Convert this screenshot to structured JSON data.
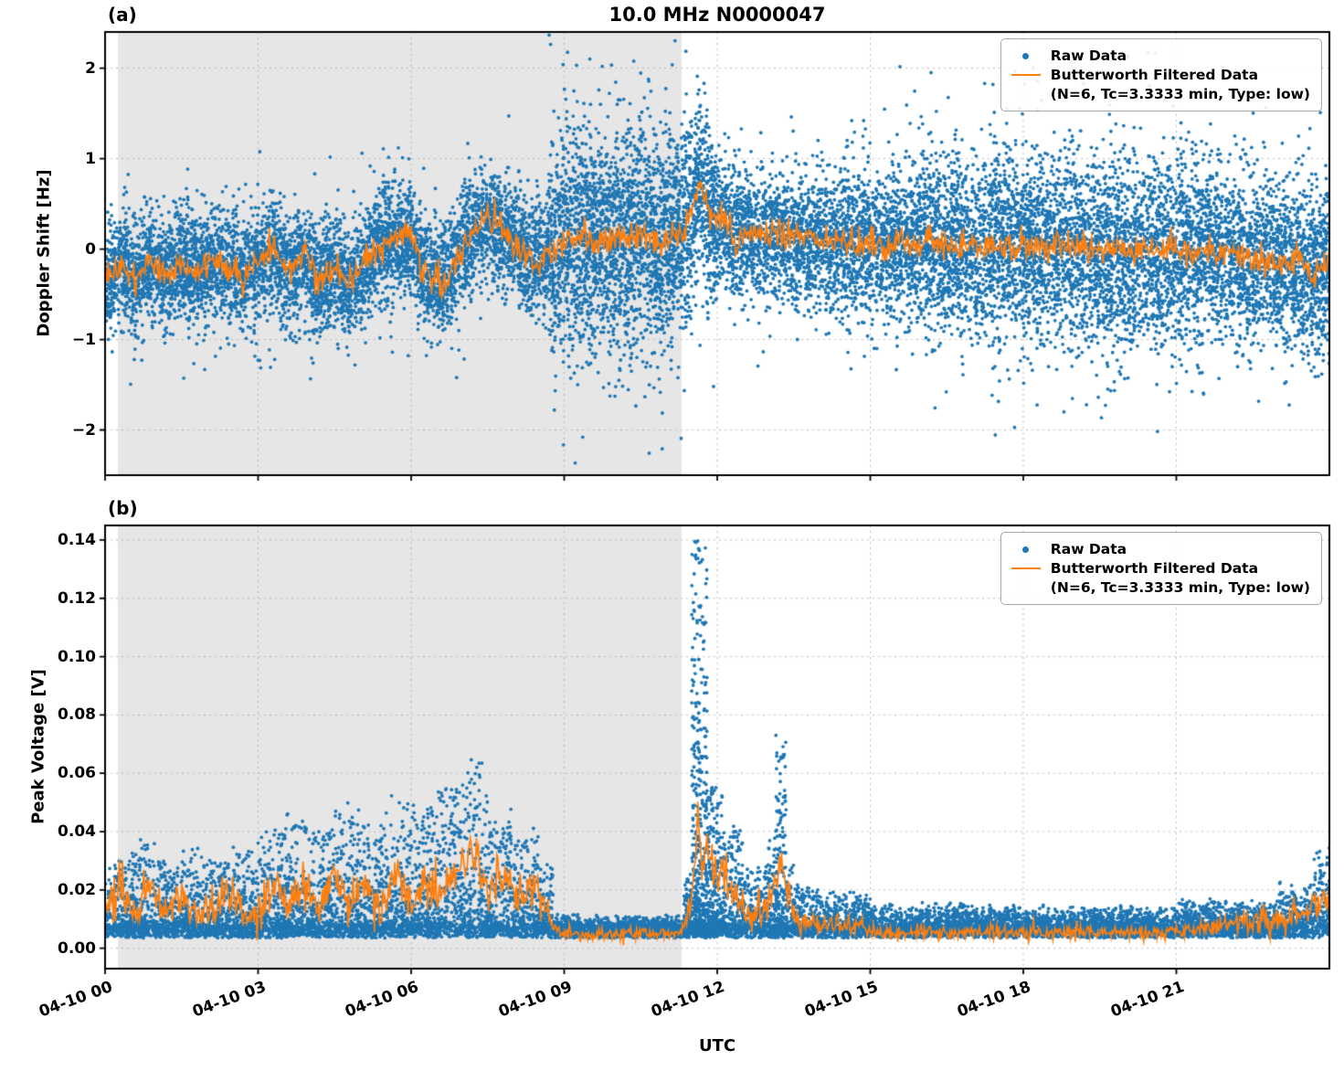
{
  "figure": {
    "title": "10.0 MHz N0000047"
  },
  "colors": {
    "raw": "#1f77b4",
    "filtered": "#ff7f0e",
    "shade": "#e6e6e6",
    "grid": "#b8b8b8",
    "spine": "#000000"
  },
  "legend": {
    "raw_label": "Raw Data",
    "filtered_label_line1": "Butterworth Filtered Data",
    "filtered_label_line2": "(N=6, Tc=3.3333 min, Type: low)"
  },
  "x_axis": {
    "label": "UTC",
    "lim": [
      0,
      24
    ],
    "ticks": [
      0,
      3,
      6,
      9,
      12,
      15,
      18,
      21
    ],
    "tick_labels": [
      "04-10 00",
      "04-10 03",
      "04-10 06",
      "04-10 09",
      "04-10 12",
      "04-10 15",
      "04-10 18",
      "04-10 21"
    ],
    "shaded_region": [
      0.25,
      11.3
    ]
  },
  "chart_data": [
    {
      "panel": "a",
      "panel_label": "(a)",
      "type": "scatter",
      "ylabel": "Doppler Shift [Hz]",
      "ylim": [
        -2.5,
        2.4
      ],
      "yticks": [
        2,
        1,
        0,
        -1,
        -2
      ],
      "ytick_labels": [
        "2",
        "1",
        "0",
        "−1",
        "−2"
      ],
      "series": {
        "raw": {
          "name": "Raw Data",
          "model": "gauss",
          "density": 700,
          "segments": [
            [
              0,
              8.7,
              0.62,
              1
            ],
            [
              8.7,
              9.3,
              1.25,
              1.2
            ],
            [
              9.3,
              11,
              1.3,
              1.3
            ],
            [
              11,
              11.5,
              1.15,
              1.3
            ],
            [
              11.5,
              12,
              0.9,
              1.2
            ],
            [
              12,
              12.6,
              0.8,
              1
            ],
            [
              12.6,
              14,
              0.72,
              1
            ],
            [
              14,
              15.5,
              0.82,
              1
            ],
            [
              15.5,
              17,
              0.95,
              1.1
            ],
            [
              17,
              19,
              1.05,
              1.1
            ],
            [
              19,
              21.5,
              1.05,
              1.1
            ],
            [
              21.5,
              24,
              0.95,
              1.1
            ]
          ]
        },
        "filtered": {
          "name": "Butterworth Filtered Data",
          "jitter": 0.085,
          "keypoints": [
            [
              0,
              -0.38
            ],
            [
              0.3,
              -0.2
            ],
            [
              0.6,
              -0.35
            ],
            [
              0.9,
              -0.12
            ],
            [
              1.2,
              -0.3
            ],
            [
              1.5,
              -0.18
            ],
            [
              1.8,
              -0.28
            ],
            [
              2.1,
              -0.1
            ],
            [
              2.4,
              -0.22
            ],
            [
              2.7,
              -0.3
            ],
            [
              3,
              -0.15
            ],
            [
              3.3,
              0
            ],
            [
              3.6,
              -0.25
            ],
            [
              3.9,
              -0.1
            ],
            [
              4.2,
              -0.35
            ],
            [
              4.5,
              -0.2
            ],
            [
              4.8,
              -0.4
            ],
            [
              5.1,
              -0.15
            ],
            [
              5.4,
              0.05
            ],
            [
              5.7,
              0.15
            ],
            [
              6,
              0.1
            ],
            [
              6.3,
              -0.3
            ],
            [
              6.6,
              -0.35
            ],
            [
              6.9,
              -0.15
            ],
            [
              7.2,
              0.2
            ],
            [
              7.5,
              0.35
            ],
            [
              7.8,
              0.2
            ],
            [
              8.1,
              0.05
            ],
            [
              8.4,
              -0.15
            ],
            [
              8.7,
              -0.05
            ],
            [
              9,
              0.05
            ],
            [
              9.3,
              0.1
            ],
            [
              9.6,
              0.05
            ],
            [
              9.9,
              0.12
            ],
            [
              10.2,
              0.08
            ],
            [
              10.5,
              0.15
            ],
            [
              10.8,
              0.1
            ],
            [
              11.1,
              0.12
            ],
            [
              11.35,
              0.2
            ],
            [
              11.55,
              0.55
            ],
            [
              11.65,
              0.78
            ],
            [
              11.8,
              0.5
            ],
            [
              11.95,
              0.3
            ],
            [
              12.1,
              0.35
            ],
            [
              12.3,
              0.15
            ],
            [
              12.6,
              0.2
            ],
            [
              12.9,
              0.1
            ],
            [
              13.2,
              0.18
            ],
            [
              13.5,
              0.08
            ],
            [
              13.8,
              0.12
            ],
            [
              14.1,
              0.02
            ],
            [
              14.4,
              0.1
            ],
            [
              14.7,
              0
            ],
            [
              15,
              0.08
            ],
            [
              15.3,
              0
            ],
            [
              15.6,
              0.1
            ],
            [
              15.9,
              0.03
            ],
            [
              16.2,
              0.1
            ],
            [
              16.5,
              0
            ],
            [
              16.8,
              0.08
            ],
            [
              17.1,
              -0.02
            ],
            [
              17.4,
              0.06
            ],
            [
              17.7,
              0
            ],
            [
              18,
              0.08
            ],
            [
              18.3,
              -0.02
            ],
            [
              18.6,
              0.05
            ],
            [
              18.9,
              -0.03
            ],
            [
              19.2,
              0.05
            ],
            [
              19.5,
              -0.02
            ],
            [
              19.8,
              0.05
            ],
            [
              20.1,
              -0.05
            ],
            [
              20.4,
              0.03
            ],
            [
              20.7,
              -0.05
            ],
            [
              21,
              0.02
            ],
            [
              21.3,
              -0.08
            ],
            [
              21.6,
              0
            ],
            [
              21.9,
              -0.1
            ],
            [
              22.2,
              -0.05
            ],
            [
              22.5,
              -0.15
            ],
            [
              22.8,
              -0.08
            ],
            [
              23.1,
              -0.2
            ],
            [
              23.4,
              -0.12
            ],
            [
              23.7,
              -0.25
            ],
            [
              24,
              -0.2
            ]
          ]
        }
      }
    },
    {
      "panel": "b",
      "panel_label": "(b)",
      "type": "scatter",
      "ylabel": "Peak Voltage [V]",
      "ylim": [
        -0.007,
        0.145
      ],
      "yticks": [
        0.14,
        0.12,
        0.1,
        0.08,
        0.06,
        0.04,
        0.02,
        0
      ],
      "ytick_labels": [
        "0.14",
        "0.12",
        "0.10",
        "0.08",
        "0.06",
        "0.04",
        "0.02",
        "0.00"
      ],
      "series": {
        "raw": {
          "name": "Raw Data",
          "model": "tail",
          "density": 520,
          "base": [
            0.0035,
            0.008
          ],
          "segments": [
            [
              0,
              0.5,
              0.025,
              1
            ],
            [
              0.5,
              1,
              0.03,
              1
            ],
            [
              1,
              1.5,
              0.024,
              1
            ],
            [
              1.5,
              2,
              0.028,
              1
            ],
            [
              2,
              2.5,
              0.024,
              1
            ],
            [
              2.5,
              3,
              0.028,
              1
            ],
            [
              3,
              3.5,
              0.034,
              1
            ],
            [
              3.5,
              4,
              0.04,
              1
            ],
            [
              4,
              4.5,
              0.034,
              1
            ],
            [
              4.5,
              5,
              0.042,
              1
            ],
            [
              5,
              5.5,
              0.036,
              1
            ],
            [
              5.5,
              6,
              0.046,
              1
            ],
            [
              6,
              6.5,
              0.042,
              1
            ],
            [
              6.5,
              7,
              0.052,
              1
            ],
            [
              7,
              7.5,
              0.058,
              1
            ],
            [
              7.5,
              8,
              0.04,
              1
            ],
            [
              8,
              8.5,
              0.034,
              1
            ],
            [
              8.5,
              8.8,
              0.022,
              1
            ],
            [
              8.8,
              11.35,
              0.004,
              1
            ],
            [
              11.35,
              11.5,
              0.02,
              2
            ],
            [
              11.5,
              11.8,
              0.135,
              3
            ],
            [
              11.8,
              12.1,
              0.05,
              2
            ],
            [
              12.1,
              12.5,
              0.035,
              1.3
            ],
            [
              12.5,
              13,
              0.022,
              1
            ],
            [
              13,
              13.15,
              0.032,
              1.3
            ],
            [
              13.15,
              13.35,
              0.066,
              2
            ],
            [
              13.35,
              13.6,
              0.022,
              1
            ],
            [
              13.6,
              14,
              0.014,
              1
            ],
            [
              14,
              15,
              0.012,
              1
            ],
            [
              15,
              17,
              0.008,
              1
            ],
            [
              17,
              21,
              0.007,
              1
            ],
            [
              21,
              23,
              0.009,
              1
            ],
            [
              23,
              23.7,
              0.015,
              1
            ],
            [
              23.7,
              24,
              0.028,
              1
            ]
          ]
        },
        "filtered": {
          "name": "Butterworth Filtered Data",
          "jitter": "scaled",
          "keypoints": [
            [
              0,
              0.012
            ],
            [
              0.3,
              0.02
            ],
            [
              0.6,
              0.01
            ],
            [
              0.9,
              0.022
            ],
            [
              1.2,
              0.012
            ],
            [
              1.5,
              0.02
            ],
            [
              1.8,
              0.01
            ],
            [
              2.1,
              0.014
            ],
            [
              2.4,
              0.018
            ],
            [
              2.7,
              0.011
            ],
            [
              3,
              0.013
            ],
            [
              3.3,
              0.024
            ],
            [
              3.6,
              0.012
            ],
            [
              3.9,
              0.022
            ],
            [
              4.2,
              0.013
            ],
            [
              4.5,
              0.028
            ],
            [
              4.8,
              0.014
            ],
            [
              5.1,
              0.024
            ],
            [
              5.4,
              0.012
            ],
            [
              5.7,
              0.028
            ],
            [
              6,
              0.013
            ],
            [
              6.3,
              0.024
            ],
            [
              6.6,
              0.016
            ],
            [
              6.9,
              0.028
            ],
            [
              7.2,
              0.034
            ],
            [
              7.5,
              0.02
            ],
            [
              7.8,
              0.027
            ],
            [
              8.1,
              0.016
            ],
            [
              8.4,
              0.022
            ],
            [
              8.7,
              0.01
            ],
            [
              9,
              0.005
            ],
            [
              9.5,
              0.0045
            ],
            [
              10,
              0.005
            ],
            [
              10.5,
              0.0055
            ],
            [
              11,
              0.005
            ],
            [
              11.3,
              0.006
            ],
            [
              11.45,
              0.012
            ],
            [
              11.55,
              0.03
            ],
            [
              11.62,
              0.047
            ],
            [
              11.7,
              0.028
            ],
            [
              11.8,
              0.038
            ],
            [
              11.9,
              0.03
            ],
            [
              12,
              0.02
            ],
            [
              12.15,
              0.026
            ],
            [
              12.3,
              0.018
            ],
            [
              12.5,
              0.014
            ],
            [
              12.7,
              0.011
            ],
            [
              12.9,
              0.013
            ],
            [
              13.1,
              0.02
            ],
            [
              13.25,
              0.031
            ],
            [
              13.4,
              0.016
            ],
            [
              13.6,
              0.01
            ],
            [
              13.8,
              0.008
            ],
            [
              14,
              0.009
            ],
            [
              14.3,
              0.007
            ],
            [
              14.6,
              0.008
            ],
            [
              15,
              0.006
            ],
            [
              15.5,
              0.005
            ],
            [
              16,
              0.006
            ],
            [
              16.5,
              0.005
            ],
            [
              17,
              0.006
            ],
            [
              17.5,
              0.005
            ],
            [
              18,
              0.006
            ],
            [
              18.5,
              0.005
            ],
            [
              19,
              0.006
            ],
            [
              19.5,
              0.005
            ],
            [
              20,
              0.006
            ],
            [
              20.5,
              0.005
            ],
            [
              21,
              0.006
            ],
            [
              21.5,
              0.007
            ],
            [
              22,
              0.008
            ],
            [
              22.5,
              0.009
            ],
            [
              23,
              0.01
            ],
            [
              23.3,
              0.011
            ],
            [
              23.6,
              0.013
            ],
            [
              24,
              0.016
            ]
          ]
        }
      }
    }
  ]
}
